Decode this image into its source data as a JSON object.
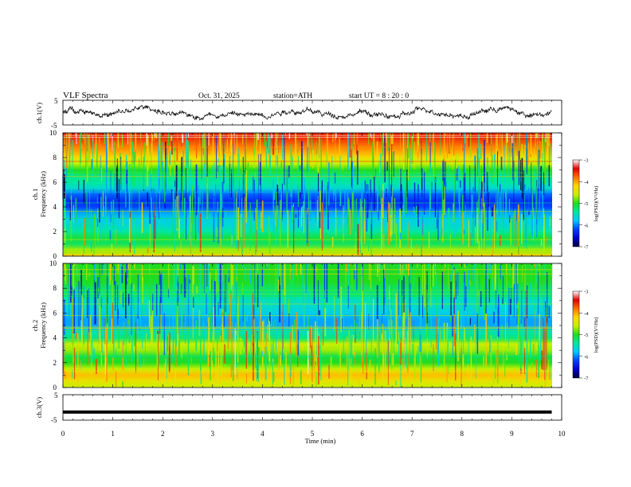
{
  "header": {
    "title": "VLF  Spectra",
    "date": "Oct. 31, 2025",
    "station": "station=ATH",
    "start_ut": "start  UT  =   8  : 20 : 0"
  },
  "chart_data": [
    {
      "type": "line",
      "name": "ch1-waveform",
      "ylabel": "ch.1(V)",
      "ylim": [
        -5,
        5
      ],
      "yticks": [
        "5",
        "-5"
      ],
      "xlim": [
        0,
        10
      ],
      "x_data_max": 9.8,
      "description_level": "noisy waveform fluctuating roughly between -3 and +3 V"
    },
    {
      "type": "heatmap",
      "name": "ch1-spectrogram",
      "ylabel_top": "ch.1",
      "ylabel": "Frequency  (kHz)",
      "ylim": [
        0,
        10
      ],
      "yticks": [
        "0",
        "2",
        "4",
        "6",
        "8",
        "10"
      ],
      "xlim": [
        0,
        10
      ],
      "x_data_max": 9.8,
      "z_profile_log_psd": [
        [
          0.0,
          -4.3
        ],
        [
          0.5,
          -4.7
        ],
        [
          1.0,
          -5.2
        ],
        [
          1.5,
          -5.1
        ],
        [
          2.0,
          -5.4
        ],
        [
          2.5,
          -5.6
        ],
        [
          3.0,
          -5.7
        ],
        [
          3.5,
          -5.9
        ],
        [
          4.0,
          -6.2
        ],
        [
          4.5,
          -6.3
        ],
        [
          5.0,
          -6.1
        ],
        [
          5.5,
          -5.6
        ],
        [
          6.0,
          -5.4
        ],
        [
          6.5,
          -5.3
        ],
        [
          7.0,
          -5.0
        ],
        [
          7.5,
          -4.6
        ],
        [
          8.0,
          -4.3
        ],
        [
          8.5,
          -4.0
        ],
        [
          9.0,
          -3.8
        ],
        [
          9.5,
          -3.6
        ],
        [
          10.0,
          -3.5
        ]
      ],
      "colorbar": {
        "label": "log(PSD)(V²/Hz)",
        "range": [
          -7,
          -3
        ],
        "ticks": [
          "-3",
          "-4",
          "-5",
          "-6",
          "-7"
        ]
      }
    },
    {
      "type": "heatmap",
      "name": "ch2-spectrogram",
      "ylabel_top": "ch.2",
      "ylabel": "Frequency  (kHz)",
      "ylim": [
        0,
        10
      ],
      "yticks": [
        "0",
        "2",
        "4",
        "6",
        "8",
        "10"
      ],
      "xlim": [
        0,
        10
      ],
      "x_data_max": 9.8,
      "z_profile_log_psd": [
        [
          0.0,
          -4.6
        ],
        [
          0.5,
          -4.4
        ],
        [
          1.0,
          -4.1
        ],
        [
          1.5,
          -4.6
        ],
        [
          2.0,
          -5.0
        ],
        [
          2.5,
          -5.1
        ],
        [
          3.0,
          -4.7
        ],
        [
          3.5,
          -4.6
        ],
        [
          4.0,
          -5.3
        ],
        [
          4.5,
          -5.5
        ],
        [
          5.0,
          -5.9
        ],
        [
          5.5,
          -5.9
        ],
        [
          6.0,
          -5.7
        ],
        [
          6.5,
          -5.6
        ],
        [
          7.0,
          -5.5
        ],
        [
          7.5,
          -5.3
        ],
        [
          8.0,
          -5.2
        ],
        [
          8.5,
          -5.0
        ],
        [
          9.0,
          -5.0
        ],
        [
          9.5,
          -5.0
        ],
        [
          10.0,
          -5.0
        ]
      ],
      "colorbar": {
        "label": "log(PSD)(V²/Hz)",
        "range": [
          -7,
          -3
        ],
        "ticks": [
          "-3",
          "-4",
          "-5",
          "-6",
          "-7"
        ]
      }
    },
    {
      "type": "line",
      "name": "ch3-waveform",
      "ylabel": "ch.3(V)",
      "ylim": [
        -5,
        5
      ],
      "yticks": [
        "5",
        "-5"
      ],
      "xlim": [
        0,
        10
      ],
      "x_data_max": 9.8,
      "level": -1.8,
      "xlabel": "Time  (min)",
      "xticks": [
        "0",
        "1",
        "2",
        "3",
        "4",
        "5",
        "6",
        "7",
        "8",
        "9",
        "10"
      ]
    }
  ],
  "colors": {
    "colormap": [
      "#00003c",
      "#0000cc",
      "#0040ff",
      "#00c8ff",
      "#00e8a0",
      "#20dc20",
      "#c8f000",
      "#ffd800",
      "#ff7000",
      "#e00000",
      "#ffffff"
    ],
    "axis": "#000000"
  }
}
